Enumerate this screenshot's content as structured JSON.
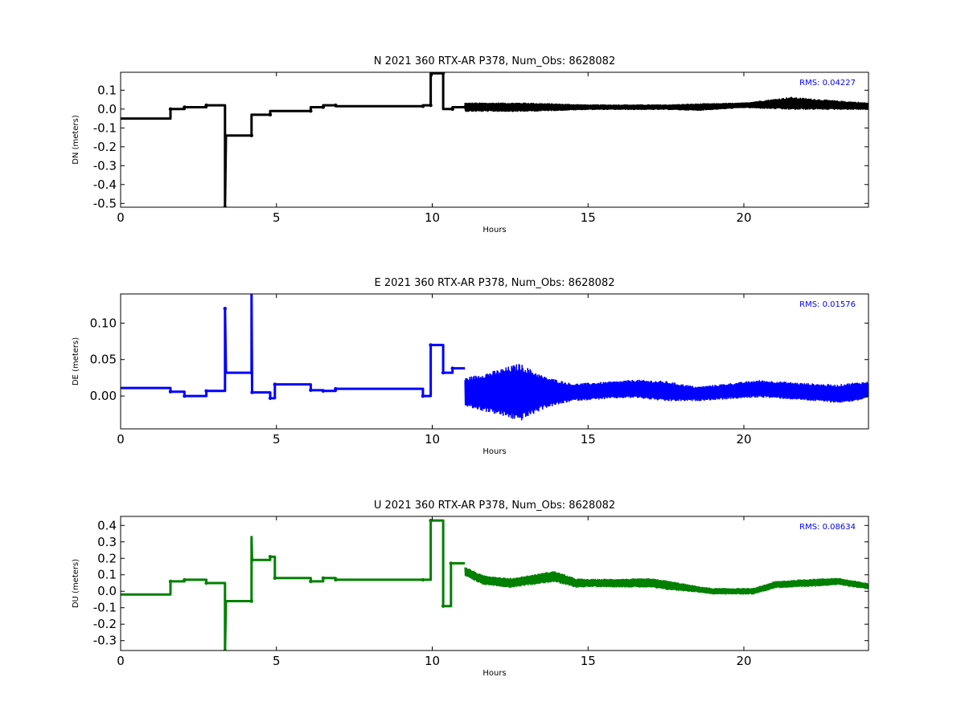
{
  "figure": {
    "background": "#ffffff",
    "xlabel": "Hours"
  },
  "chart_data": [
    {
      "type": "line",
      "title": "N 2021 360 RTX-AR  P378, Num_Obs: 8628082",
      "xlabel": "Hours",
      "ylabel": "DN (meters)",
      "xlim": [
        0,
        24
      ],
      "ylim": [
        -0.52,
        0.195
      ],
      "xticks": [
        "0",
        "5",
        "10",
        "15",
        "20"
      ],
      "yticks": [
        "0.1",
        "0.0",
        "-0.1",
        "-0.2",
        "-0.3",
        "-0.4",
        "-0.5"
      ],
      "rms_label": "RMS:  0.04227",
      "rms_color": "#0000ff",
      "series": [
        {
          "color": "#000000",
          "steps": [
            [
              0,
              -0.05
            ],
            [
              1.6,
              -0.05
            ],
            [
              1.6,
              0.0
            ],
            [
              2.05,
              0.0
            ],
            [
              2.05,
              0.01
            ],
            [
              2.75,
              0.01
            ],
            [
              2.75,
              0.02
            ],
            [
              3.35,
              0.02
            ],
            [
              3.35,
              -0.52
            ],
            [
              3.38,
              -0.14
            ],
            [
              4.2,
              -0.14
            ],
            [
              4.2,
              -0.03
            ],
            [
              4.8,
              -0.03
            ],
            [
              4.8,
              -0.01
            ],
            [
              6.1,
              -0.01
            ],
            [
              6.1,
              0.01
            ],
            [
              6.5,
              0.01
            ],
            [
              6.5,
              0.02
            ],
            [
              6.9,
              0.02
            ],
            [
              6.9,
              0.015
            ],
            [
              9.7,
              0.015
            ],
            [
              9.7,
              0.02
            ],
            [
              9.95,
              0.02
            ],
            [
              9.95,
              0.19
            ],
            [
              10.35,
              0.19
            ],
            [
              10.35,
              0.0
            ],
            [
              10.65,
              0.0
            ],
            [
              10.65,
              0.01
            ],
            [
              11.05,
              0.01
            ]
          ],
          "noise": {
            "x_start": 11.05,
            "x_end": 24,
            "center": 0.01,
            "amplitude": [
              [
                11.05,
                0.025
              ],
              [
                13.0,
                0.025
              ],
              [
                15.0,
                0.015
              ],
              [
                17.5,
                0.015
              ],
              [
                18.5,
                0.02
              ],
              [
                20.0,
                0.015
              ],
              [
                21.5,
                0.035
              ],
              [
                23.0,
                0.025
              ],
              [
                24.0,
                0.02
              ]
            ],
            "wander": [
              [
                11.05,
                0.0
              ],
              [
                14.0,
                0.0
              ],
              [
                18.5,
                0.0
              ],
              [
                21.5,
                0.02
              ],
              [
                24.0,
                0.005
              ]
            ]
          }
        }
      ]
    },
    {
      "type": "line",
      "title": "E 2021 360 RTX-AR  P378, Num_Obs: 8628082",
      "xlabel": "Hours",
      "ylabel": "DE (meters)",
      "xlim": [
        0,
        24
      ],
      "ylim": [
        -0.045,
        0.14
      ],
      "xticks": [
        "0",
        "5",
        "10",
        "15",
        "20"
      ],
      "yticks": [
        "0.10",
        "0.05",
        "0.00"
      ],
      "rms_label": "RMS:  0.01576",
      "rms_color": "#0000ff",
      "series": [
        {
          "color": "#0000ff",
          "steps": [
            [
              0,
              0.011
            ],
            [
              1.6,
              0.011
            ],
            [
              1.6,
              0.006
            ],
            [
              2.05,
              0.006
            ],
            [
              2.05,
              0.0
            ],
            [
              2.75,
              0.0
            ],
            [
              2.75,
              0.007
            ],
            [
              3.35,
              0.007
            ],
            [
              3.35,
              0.12
            ],
            [
              3.38,
              0.032
            ],
            [
              4.2,
              0.032
            ],
            [
              4.2,
              0.14
            ],
            [
              4.22,
              0.005
            ],
            [
              4.8,
              0.005
            ],
            [
              4.8,
              -0.003
            ],
            [
              4.95,
              -0.003
            ],
            [
              4.95,
              0.016
            ],
            [
              6.1,
              0.016
            ],
            [
              6.1,
              0.008
            ],
            [
              6.5,
              0.008
            ],
            [
              6.5,
              0.007
            ],
            [
              6.9,
              0.007
            ],
            [
              6.9,
              0.01
            ],
            [
              9.7,
              0.01
            ],
            [
              9.7,
              0.0
            ],
            [
              9.95,
              0.0
            ],
            [
              9.95,
              0.07
            ],
            [
              10.35,
              0.07
            ],
            [
              10.35,
              0.032
            ],
            [
              10.65,
              0.032
            ],
            [
              10.65,
              0.038
            ],
            [
              11.05,
              0.038
            ]
          ],
          "noise": {
            "x_start": 11.05,
            "x_end": 24,
            "center": 0.005,
            "amplitude": [
              [
                11.05,
                0.02
              ],
              [
                12.0,
                0.03
              ],
              [
                12.8,
                0.04
              ],
              [
                13.6,
                0.022
              ],
              [
                14.5,
                0.012
              ],
              [
                16.0,
                0.012
              ],
              [
                17.5,
                0.014
              ],
              [
                18.5,
                0.01
              ],
              [
                20.5,
                0.012
              ],
              [
                22.0,
                0.012
              ],
              [
                23.5,
                0.013
              ],
              [
                24.0,
                0.012
              ]
            ],
            "wander": [
              [
                11.05,
                0.0
              ],
              [
                14.5,
                0.0
              ],
              [
                16.5,
                0.005
              ],
              [
                18.5,
                -0.002
              ],
              [
                20.5,
                0.005
              ],
              [
                23.0,
                -0.002
              ],
              [
                24.0,
                0.003
              ]
            ]
          }
        }
      ]
    },
    {
      "type": "line",
      "title": "U 2021 360 RTX-AR  P378, Num_Obs: 8628082",
      "xlabel": "Hours",
      "ylabel": "DU (meters)",
      "xlim": [
        0,
        24
      ],
      "ylim": [
        -0.36,
        0.455
      ],
      "xticks": [
        "0",
        "5",
        "10",
        "15",
        "20"
      ],
      "yticks": [
        "0.4",
        "0.3",
        "0.2",
        "0.1",
        "0.0",
        "-0.1",
        "-0.2",
        "-0.3"
      ],
      "rms_label": "RMS:  0.08634",
      "rms_color": "#0000ff",
      "series": [
        {
          "color": "#008000",
          "steps": [
            [
              0,
              -0.02
            ],
            [
              1.6,
              -0.02
            ],
            [
              1.6,
              0.06
            ],
            [
              2.05,
              0.06
            ],
            [
              2.05,
              0.07
            ],
            [
              2.75,
              0.07
            ],
            [
              2.75,
              0.05
            ],
            [
              3.35,
              0.05
            ],
            [
              3.35,
              -0.36
            ],
            [
              3.38,
              -0.06
            ],
            [
              4.2,
              -0.06
            ],
            [
              4.2,
              0.33
            ],
            [
              4.22,
              0.19
            ],
            [
              4.8,
              0.19
            ],
            [
              4.8,
              0.21
            ],
            [
              4.95,
              0.21
            ],
            [
              4.95,
              0.08
            ],
            [
              6.1,
              0.08
            ],
            [
              6.1,
              0.06
            ],
            [
              6.5,
              0.06
            ],
            [
              6.5,
              0.08
            ],
            [
              6.9,
              0.08
            ],
            [
              6.9,
              0.07
            ],
            [
              9.7,
              0.07
            ],
            [
              9.7,
              0.07
            ],
            [
              9.95,
              0.07
            ],
            [
              9.95,
              0.43
            ],
            [
              10.35,
              0.43
            ],
            [
              10.35,
              -0.09
            ],
            [
              10.6,
              -0.09
            ],
            [
              10.6,
              0.17
            ],
            [
              11.05,
              0.17
            ]
          ],
          "noise": {
            "x_start": 11.05,
            "x_end": 24,
            "center": 0.0,
            "amplitude": [
              [
                11.05,
                0.03
              ],
              [
                13.0,
                0.03
              ],
              [
                14.0,
                0.035
              ],
              [
                15.0,
                0.025
              ],
              [
                17.5,
                0.03
              ],
              [
                18.5,
                0.02
              ],
              [
                20.5,
                0.02
              ],
              [
                22.0,
                0.025
              ],
              [
                24.0,
                0.02
              ]
            ],
            "wander": [
              [
                11.05,
                0.12
              ],
              [
                11.6,
                0.07
              ],
              [
                12.5,
                0.05
              ],
              [
                13.9,
                0.09
              ],
              [
                14.6,
                0.05
              ],
              [
                17.0,
                0.05
              ],
              [
                18.2,
                0.02
              ],
              [
                19.0,
                0.0
              ],
              [
                20.3,
                0.0
              ],
              [
                21.0,
                0.04
              ],
              [
                23.0,
                0.06
              ],
              [
                24.0,
                0.03
              ]
            ]
          }
        }
      ]
    }
  ]
}
